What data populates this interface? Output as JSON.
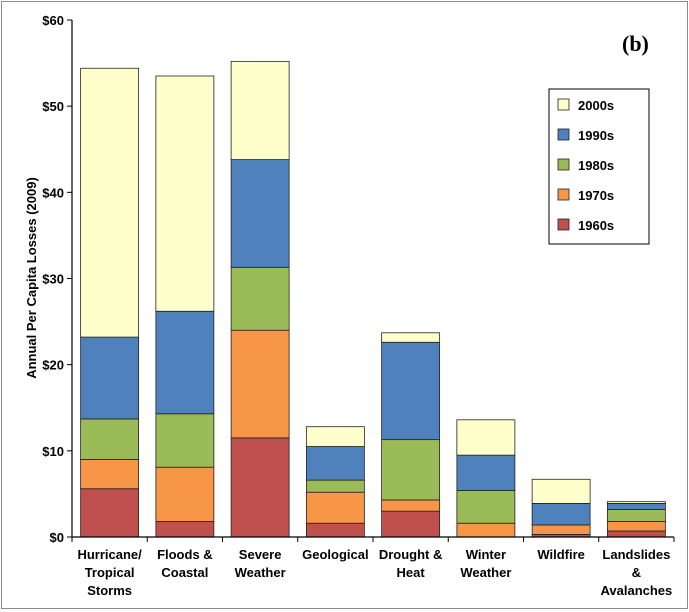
{
  "chart_data": {
    "type": "bar",
    "stacked": true,
    "panel_label": "(b)",
    "ylabel": "Annual Per Capita Losses (2009)",
    "xlabel": "",
    "ylim": [
      0,
      60
    ],
    "y_ticks": [
      "$0",
      "$10",
      "$20",
      "$30",
      "$40",
      "$50",
      "$60"
    ],
    "y_tick_values": [
      0,
      10,
      20,
      30,
      40,
      50,
      60
    ],
    "categories": [
      [
        "Hurricane/",
        "Tropical",
        "Storms"
      ],
      [
        "Floods &",
        "Coastal"
      ],
      [
        "Severe",
        "Weather"
      ],
      [
        "Geological"
      ],
      [
        "Drought &",
        "Heat"
      ],
      [
        "Winter",
        "Weather"
      ],
      [
        "Wildfire"
      ],
      [
        "Landslides",
        "&",
        "Avalanches"
      ]
    ],
    "series": [
      {
        "name": "1960s",
        "color": "#c0504d",
        "values": [
          5.6,
          1.8,
          11.5,
          1.6,
          3.0,
          0.0,
          0.3,
          0.7
        ]
      },
      {
        "name": "1970s",
        "color": "#f79646",
        "values": [
          3.4,
          6.3,
          12.5,
          3.6,
          1.3,
          1.6,
          1.1,
          1.1
        ]
      },
      {
        "name": "1980s",
        "color": "#9bbb59",
        "values": [
          4.7,
          6.2,
          7.3,
          1.4,
          7.0,
          3.8,
          0.0,
          1.4
        ]
      },
      {
        "name": "1990s",
        "color": "#4f81bd",
        "values": [
          9.5,
          11.9,
          12.5,
          3.9,
          11.3,
          4.1,
          2.5,
          0.7
        ]
      },
      {
        "name": "2000s",
        "color": "#ffffcc",
        "values": [
          31.2,
          27.3,
          11.4,
          2.3,
          1.1,
          4.1,
          2.8,
          0.2
        ]
      }
    ],
    "legend_order": [
      "2000s",
      "1990s",
      "1980s",
      "1970s",
      "1960s"
    ],
    "legend_position": "top-right",
    "grid": false
  }
}
